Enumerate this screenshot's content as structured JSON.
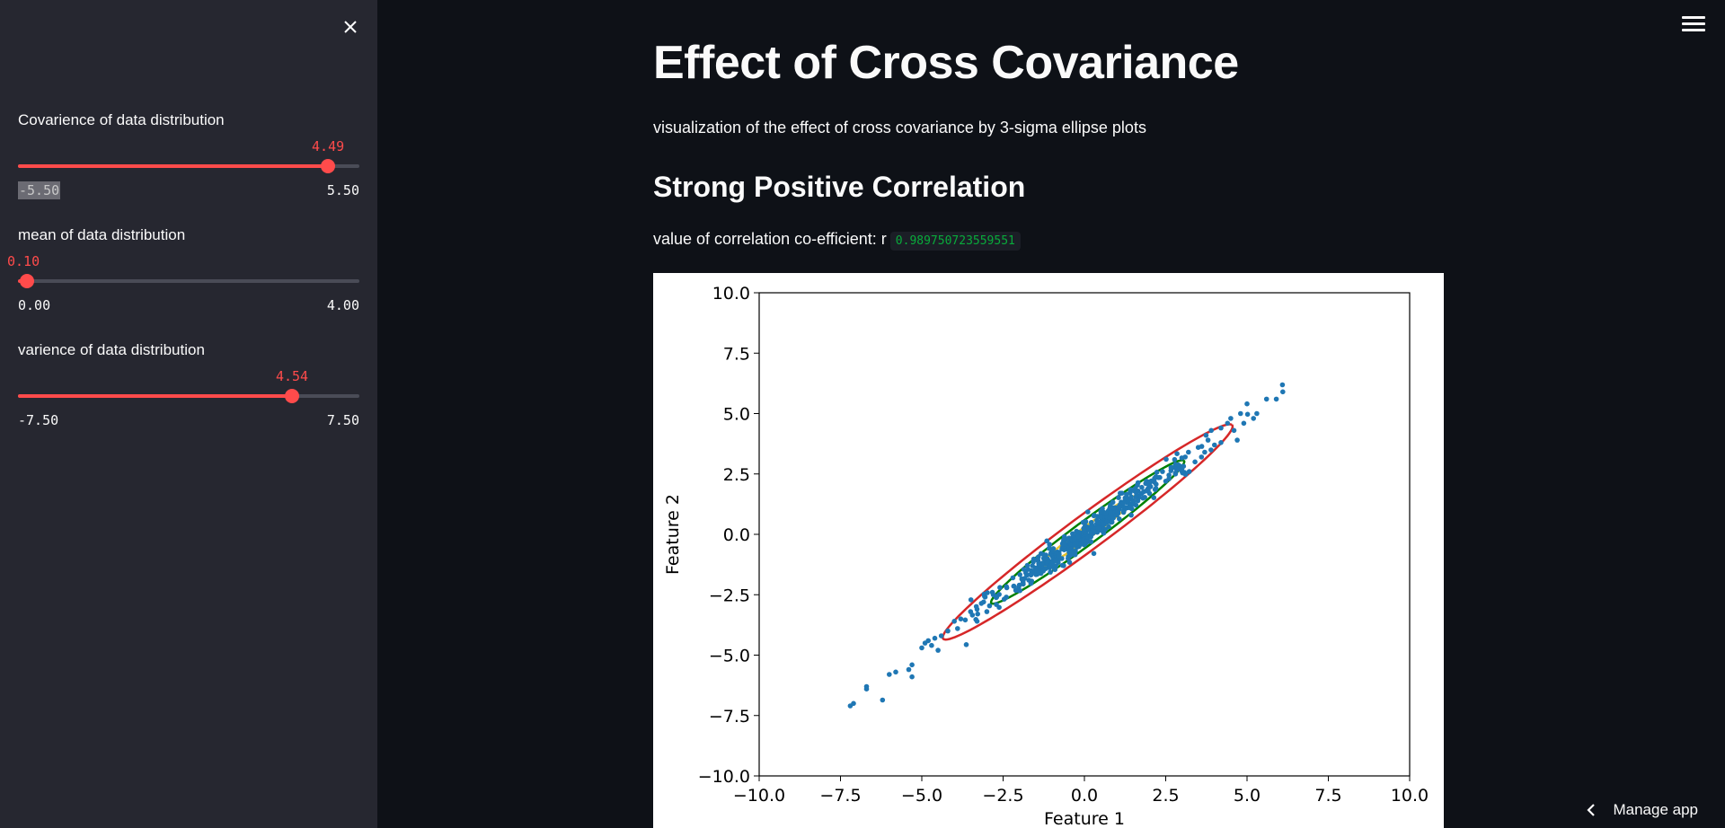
{
  "sidebar": {
    "close_icon": "close-icon",
    "sliders": [
      {
        "label": "Covarience of data distribution",
        "value": "4.49",
        "min": "-5.50",
        "max": "5.50",
        "num_value": 4.49,
        "num_min": -5.5,
        "num_max": 5.5
      },
      {
        "label": "mean of data distribution",
        "value": "0.10",
        "min": "0.00",
        "max": "4.00",
        "num_value": 0.1,
        "num_min": 0.0,
        "num_max": 4.0
      },
      {
        "label": "varience of data distribution",
        "value": "4.54",
        "min": "-7.50",
        "max": "7.50",
        "num_value": 4.54,
        "num_min": -7.5,
        "num_max": 7.5
      }
    ]
  },
  "header": {
    "menu_icon": "hamburger-menu-icon"
  },
  "main": {
    "title": "Effect of Cross Covariance",
    "subtitle": "visualization of the effect of cross covariance by 3-sigma ellipse plots",
    "section_title": "Strong Positive Correlation",
    "corr_label": "value of correlation co-efficient: r",
    "corr_value": "0.989750723559551"
  },
  "footer": {
    "manage_label": "Manage app",
    "manage_icon": "chevron-left-icon"
  },
  "chart_data": {
    "type": "scatter",
    "xlabel": "Feature 1",
    "ylabel": "Feature 2",
    "xlim": [
      -10,
      10
    ],
    "ylim": [
      -10,
      10
    ],
    "xticks": [
      "−10.0",
      "−7.5",
      "−5.0",
      "−2.5",
      "0.0",
      "2.5",
      "5.0",
      "7.5",
      "10.0"
    ],
    "yticks": [
      "10.0",
      "7.5",
      "5.0",
      "2.5",
      "0.0",
      "−2.5",
      "−5.0",
      "−7.5",
      "−10.0"
    ],
    "point_color": "#1f77b4",
    "ellipses": [
      {
        "color": "#d62728",
        "sigma": 3
      },
      {
        "color": "#008000",
        "sigma": 2
      },
      {
        "color": "#e6c229",
        "sigma": 1
      }
    ],
    "points": [
      [
        -7.1,
        -7.0
      ],
      [
        -7.2,
        -7.1
      ],
      [
        -6.7,
        -6.3
      ],
      [
        -6.7,
        -6.4
      ],
      [
        -6.0,
        -5.8
      ],
      [
        -5.8,
        -5.7
      ],
      [
        -5.4,
        -5.6
      ],
      [
        -5.3,
        -5.9
      ],
      [
        -5.3,
        -5.4
      ],
      [
        -5.0,
        -4.7
      ],
      [
        -4.9,
        -4.5
      ],
      [
        -4.8,
        -4.4
      ],
      [
        -4.7,
        -4.6
      ],
      [
        -4.6,
        -4.3
      ],
      [
        -4.5,
        -4.8
      ],
      [
        -4.2,
        -4.0
      ],
      [
        -4.0,
        -3.6
      ],
      [
        -3.8,
        -3.5
      ],
      [
        -3.5,
        -3.2
      ],
      [
        -3.3,
        -3.6
      ],
      [
        -3.1,
        -2.8
      ],
      [
        -3.0,
        -3.2
      ],
      [
        -2.8,
        -2.5
      ],
      [
        -2.6,
        -2.2
      ],
      [
        -2.4,
        -2.6
      ],
      [
        -2.2,
        -1.8
      ],
      [
        -2.0,
        -2.1
      ],
      [
        -1.8,
        -1.6
      ],
      [
        -1.6,
        -1.3
      ],
      [
        -1.4,
        -1.6
      ],
      [
        -1.2,
        -1.0
      ],
      [
        -1.0,
        -0.7
      ],
      [
        -0.8,
        -0.9
      ],
      [
        -0.6,
        -0.4
      ],
      [
        -0.4,
        -0.6
      ],
      [
        -0.2,
        -0.1
      ],
      [
        0.0,
        0.2
      ],
      [
        0.2,
        -0.1
      ],
      [
        0.4,
        0.5
      ],
      [
        0.6,
        0.4
      ],
      [
        0.8,
        0.9
      ],
      [
        1.0,
        0.8
      ],
      [
        1.2,
        1.3
      ],
      [
        1.4,
        1.1
      ],
      [
        1.6,
        1.7
      ],
      [
        1.8,
        1.5
      ],
      [
        2.0,
        2.1
      ],
      [
        2.2,
        1.9
      ],
      [
        2.4,
        2.6
      ],
      [
        2.6,
        2.3
      ],
      [
        2.8,
        2.9
      ],
      [
        3.0,
        2.6
      ],
      [
        3.2,
        3.4
      ],
      [
        3.4,
        3.0
      ],
      [
        3.6,
        3.2
      ],
      [
        3.8,
        3.9
      ],
      [
        4.0,
        3.7
      ],
      [
        4.2,
        4.4
      ],
      [
        4.4,
        4.6
      ],
      [
        4.6,
        4.3
      ],
      [
        4.8,
        5.0
      ],
      [
        5.0,
        5.4
      ],
      [
        5.2,
        4.8
      ],
      [
        5.6,
        5.6
      ],
      [
        5.9,
        5.6
      ],
      [
        6.1,
        5.9
      ],
      [
        4.7,
        3.9
      ],
      [
        4.2,
        3.8
      ],
      [
        3.9,
        4.3
      ],
      [
        3.5,
        3.6
      ],
      [
        3.1,
        3.2
      ],
      [
        2.5,
        2.2
      ],
      [
        1.9,
        1.8
      ],
      [
        1.5,
        1.4
      ],
      [
        0.9,
        1.1
      ],
      [
        0.3,
        0.1
      ],
      [
        -0.3,
        -0.2
      ],
      [
        -0.9,
        -1.1
      ],
      [
        -1.5,
        -1.4
      ],
      [
        -2.1,
        -2.3
      ],
      [
        -2.7,
        -2.6
      ],
      [
        -3.3,
        -3.1
      ],
      [
        -3.9,
        -3.9
      ],
      [
        -4.4,
        -4.2
      ],
      [
        4.5,
        4.8
      ],
      [
        5.3,
        5.0
      ],
      [
        4.9,
        4.6
      ],
      [
        3.7,
        3.4
      ],
      [
        2.9,
        2.7
      ]
    ]
  }
}
